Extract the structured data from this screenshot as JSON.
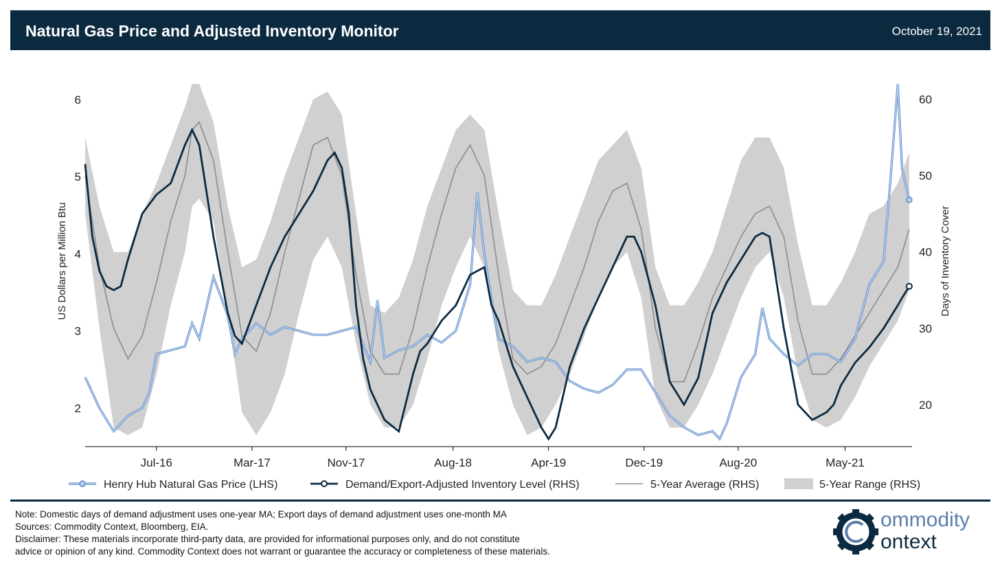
{
  "header": {
    "title": "Natural Gas Price and Adjusted Inventory Monitor",
    "date": "October 19, 2021"
  },
  "colors": {
    "navy": "#0b2a40",
    "price_line": "#5b87c4",
    "price_fill": "#b9d1f0",
    "inventory_line": "#0b2a40",
    "average_line": "#8c8c8c",
    "range_fill": "#d0d0d0"
  },
  "chart_data": {
    "type": "line",
    "title": "Natural Gas Price and Adjusted Inventory Monitor",
    "ylabel_left": "US Dollars per Million Btu",
    "ylabel_right": "Days of Inventory Cover",
    "ylim_left": [
      1.5,
      6.4
    ],
    "ylim_right": [
      14.5,
      64
    ],
    "yticks_left": [
      "2",
      "3",
      "4",
      "5",
      "6"
    ],
    "yticks_right": [
      "20",
      "30",
      "40",
      "50",
      "60"
    ],
    "x_range": [
      2016.0,
      2021.8
    ],
    "xticks": [
      {
        "label": "Jul-16",
        "x": 2016.5
      },
      {
        "label": "Mar-17",
        "x": 2017.17
      },
      {
        "label": "Nov-17",
        "x": 2017.83
      },
      {
        "label": "Aug-18",
        "x": 2018.58
      },
      {
        "label": "Apr-19",
        "x": 2019.25
      },
      {
        "label": "Dec-19",
        "x": 2019.92
      },
      {
        "label": "Aug-20",
        "x": 2020.58
      },
      {
        "label": "May-21",
        "x": 2021.33
      }
    ],
    "legend": [
      {
        "key": "price",
        "label": "Henry Hub Natural Gas Price (LHS)"
      },
      {
        "key": "inventory",
        "label": "Demand/Export-Adjusted Inventory Level (RHS)"
      },
      {
        "key": "average",
        "label": "5-Year Average (RHS)"
      },
      {
        "key": "range",
        "label": "5-Year Range (RHS)"
      }
    ],
    "series": [
      {
        "name": "Henry Hub Natural Gas Price (LHS)",
        "axis": "left",
        "x": [
          2016.0,
          2016.1,
          2016.2,
          2016.3,
          2016.4,
          2016.45,
          2016.5,
          2016.6,
          2016.7,
          2016.75,
          2016.8,
          2016.9,
          2017.0,
          2017.05,
          2017.1,
          2017.2,
          2017.3,
          2017.4,
          2017.5,
          2017.6,
          2017.7,
          2017.8,
          2017.9,
          2018.0,
          2018.05,
          2018.1,
          2018.2,
          2018.3,
          2018.4,
          2018.5,
          2018.6,
          2018.65,
          2018.7,
          2018.75,
          2018.8,
          2018.85,
          2018.9,
          2019.0,
          2019.1,
          2019.2,
          2019.3,
          2019.4,
          2019.5,
          2019.6,
          2019.7,
          2019.8,
          2019.9,
          2020.0,
          2020.1,
          2020.2,
          2020.3,
          2020.4,
          2020.45,
          2020.5,
          2020.6,
          2020.7,
          2020.75,
          2020.8,
          2020.9,
          2021.0,
          2021.1,
          2021.2,
          2021.3,
          2021.4,
          2021.5,
          2021.6,
          2021.65,
          2021.7,
          2021.73,
          2021.78
        ],
        "values": [
          2.4,
          2.0,
          1.7,
          1.9,
          2.0,
          2.2,
          2.7,
          2.75,
          2.8,
          3.1,
          2.9,
          3.7,
          3.2,
          2.7,
          2.9,
          3.1,
          2.95,
          3.05,
          3.0,
          2.95,
          2.95,
          3.0,
          3.05,
          2.6,
          3.4,
          2.65,
          2.75,
          2.8,
          2.95,
          2.85,
          3.0,
          3.3,
          3.6,
          4.8,
          4.0,
          3.4,
          2.9,
          2.8,
          2.6,
          2.65,
          2.6,
          2.35,
          2.25,
          2.2,
          2.3,
          2.5,
          2.5,
          2.2,
          1.9,
          1.75,
          1.65,
          1.7,
          1.6,
          1.8,
          2.4,
          2.7,
          3.3,
          2.9,
          2.7,
          2.55,
          2.7,
          2.7,
          2.6,
          2.9,
          3.6,
          3.9,
          5.0,
          6.2,
          5.1,
          4.7
        ]
      },
      {
        "name": "Demand/Export-Adjusted Inventory Level (RHS)",
        "axis": "right",
        "x": [
          2016.0,
          2016.05,
          2016.1,
          2016.15,
          2016.2,
          2016.25,
          2016.3,
          2016.4,
          2016.5,
          2016.6,
          2016.7,
          2016.75,
          2016.8,
          2016.9,
          2017.0,
          2017.05,
          2017.1,
          2017.2,
          2017.3,
          2017.4,
          2017.5,
          2017.6,
          2017.7,
          2017.75,
          2017.8,
          2017.85,
          2017.9,
          2017.95,
          2018.0,
          2018.1,
          2018.2,
          2018.3,
          2018.35,
          2018.4,
          2018.5,
          2018.6,
          2018.7,
          2018.8,
          2018.85,
          2018.9,
          2019.0,
          2019.1,
          2019.2,
          2019.25,
          2019.3,
          2019.4,
          2019.5,
          2019.6,
          2019.7,
          2019.8,
          2019.85,
          2019.9,
          2020.0,
          2020.1,
          2020.2,
          2020.3,
          2020.4,
          2020.5,
          2020.6,
          2020.7,
          2020.75,
          2020.8,
          2020.85,
          2020.9,
          2021.0,
          2021.1,
          2021.2,
          2021.25,
          2021.3,
          2021.4,
          2021.5,
          2021.6,
          2021.7,
          2021.73,
          2021.78
        ],
        "values": [
          51.5,
          42,
          37.5,
          35.5,
          35,
          35.5,
          39,
          45,
          47.5,
          49,
          54,
          56,
          54,
          42,
          32,
          29,
          28,
          33,
          38,
          42,
          45,
          48,
          52,
          53,
          51,
          45,
          33,
          26,
          22,
          18,
          16.5,
          24,
          27,
          28,
          31,
          33,
          37,
          38,
          33,
          31,
          25,
          21,
          17,
          15.5,
          17,
          25,
          30,
          34,
          38,
          42,
          42,
          40,
          33,
          23,
          20,
          23.5,
          32,
          36,
          39,
          42,
          42.5,
          42,
          36,
          30,
          20,
          18,
          19,
          20,
          22.5,
          25.5,
          27.5,
          30,
          33,
          34,
          35.5
        ]
      },
      {
        "name": "5-Year Average (RHS)",
        "axis": "right",
        "x": [
          2016.0,
          2016.1,
          2016.2,
          2016.3,
          2016.4,
          2016.5,
          2016.6,
          2016.7,
          2016.75,
          2016.8,
          2016.9,
          2017.0,
          2017.1,
          2017.2,
          2017.3,
          2017.4,
          2017.5,
          2017.6,
          2017.7,
          2017.8,
          2017.9,
          2018.0,
          2018.1,
          2018.2,
          2018.3,
          2018.4,
          2018.5,
          2018.6,
          2018.7,
          2018.8,
          2018.9,
          2019.0,
          2019.1,
          2019.2,
          2019.3,
          2019.4,
          2019.5,
          2019.6,
          2019.7,
          2019.8,
          2019.9,
          2020.0,
          2020.1,
          2020.2,
          2020.3,
          2020.4,
          2020.5,
          2020.6,
          2020.7,
          2020.8,
          2020.9,
          2021.0,
          2021.1,
          2021.2,
          2021.3,
          2021.4,
          2021.5,
          2021.6,
          2021.7,
          2021.78
        ],
        "values": [
          50,
          38,
          30,
          26,
          29,
          36,
          44,
          50,
          56,
          57,
          52,
          40,
          29,
          27,
          32,
          40,
          47,
          54,
          55,
          50,
          37,
          27,
          24,
          24,
          30,
          38,
          45,
          51,
          54,
          50,
          37,
          26,
          24,
          25,
          28,
          33,
          38,
          44,
          48,
          49,
          43,
          30,
          23,
          23,
          28,
          34,
          38,
          42,
          45,
          46,
          42,
          31,
          24,
          24,
          26,
          29,
          32,
          35,
          38,
          43
        ]
      },
      {
        "name": "5-Year Range (RHS)",
        "type": "area",
        "axis": "right",
        "x": [
          2016.0,
          2016.1,
          2016.2,
          2016.3,
          2016.4,
          2016.5,
          2016.6,
          2016.7,
          2016.75,
          2016.8,
          2016.9,
          2017.0,
          2017.1,
          2017.2,
          2017.3,
          2017.4,
          2017.5,
          2017.6,
          2017.7,
          2017.8,
          2017.9,
          2018.0,
          2018.1,
          2018.2,
          2018.3,
          2018.4,
          2018.5,
          2018.6,
          2018.7,
          2018.8,
          2018.9,
          2019.0,
          2019.1,
          2019.2,
          2019.3,
          2019.4,
          2019.5,
          2019.6,
          2019.7,
          2019.8,
          2019.9,
          2020.0,
          2020.1,
          2020.2,
          2020.3,
          2020.4,
          2020.5,
          2020.6,
          2020.7,
          2020.8,
          2020.9,
          2021.0,
          2021.1,
          2021.2,
          2021.3,
          2021.4,
          2021.5,
          2021.6,
          2021.7,
          2021.78
        ],
        "upper": [
          55,
          46,
          40,
          40,
          45,
          49,
          54,
          59,
          62,
          62,
          57,
          46,
          38,
          39,
          44,
          50,
          55,
          60,
          61,
          58,
          45,
          33,
          32,
          34,
          39,
          46,
          51,
          56,
          58,
          56,
          45,
          35,
          33,
          33,
          37,
          42,
          47,
          52,
          54,
          56,
          51,
          38,
          33,
          33,
          36,
          40,
          46,
          52,
          55,
          55,
          51,
          41,
          33,
          33,
          36,
          40,
          45,
          46,
          49,
          53
        ],
        "lower": [
          45,
          30,
          17,
          16,
          17,
          24,
          33,
          40,
          46,
          47,
          44,
          32,
          19,
          16,
          19,
          24,
          32,
          39,
          42,
          38,
          28,
          20,
          17,
          17,
          20,
          26,
          33,
          38,
          42,
          38,
          27,
          20,
          16,
          17,
          20,
          24,
          29,
          34,
          38,
          40,
          34,
          21,
          17,
          17,
          20,
          24,
          29,
          34,
          38,
          40,
          34,
          24,
          18,
          17,
          18,
          21,
          25,
          28,
          31,
          35
        ]
      }
    ]
  },
  "footer": {
    "note": "Note: Domestic days of demand adjustment uses one-year MA; Export days of demand adjustment uses one-month MA",
    "sources": "Sources: Commodity Context, Bloomberg, EIA.",
    "disclaimer_line1": "Disclaimer: These materials incorporate third-party data, are provided for informational purposes only, and do not constitute",
    "disclaimer_line2": "advice or opinion of any kind. Commodity Context does not warrant or guarantee the accuracy or completeness of these materials."
  },
  "logo": {
    "line1": "ommodity",
    "line2": "ontext"
  }
}
